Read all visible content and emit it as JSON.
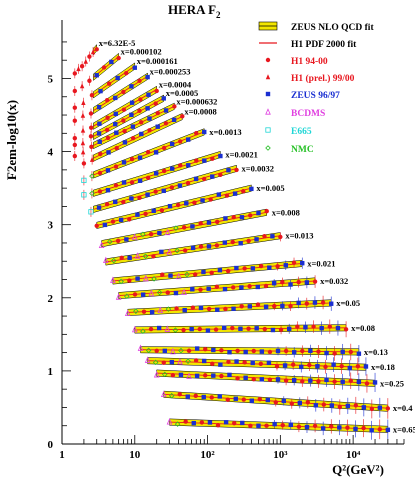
{
  "page": {
    "title": "HERA F",
    "title_sub": "2"
  },
  "chart_data": {
    "type": "scatter",
    "title": "HERA F2",
    "xlabel": "Q²(GeV²)",
    "ylabel": "F2em-log10(x)",
    "x_scale": "log",
    "xlim": [
      1,
      50000
    ],
    "ylim": [
      0,
      5.8
    ],
    "x_ticks": [
      {
        "value": 1,
        "label": "1"
      },
      {
        "value": 10,
        "label": "10"
      },
      {
        "value": 100,
        "label": "10²"
      },
      {
        "value": 1000,
        "label": "10³"
      },
      {
        "value": 10000,
        "label": "10⁴"
      }
    ],
    "y_ticks": [
      0,
      1,
      2,
      3,
      4,
      5
    ],
    "grid": false,
    "legend_position": "top-right",
    "colors": {
      "h1_9400": "#e8171f",
      "h1_prel": "#e8171f",
      "zeus": "#1a2fd1",
      "bcdms": "#e040e0",
      "e665": "#1fd6d6",
      "nmc": "#27c127",
      "fit_band": "#f2e600",
      "h1_fit": "#e8171f",
      "axis": "#000000"
    },
    "legend": [
      {
        "key": "zeus_fit",
        "label": "ZEUS NLO QCD fit"
      },
      {
        "key": "h1_fit",
        "label": "H1 PDF 2000 fit"
      },
      {
        "key": "h1_9400",
        "label": "H1 94-00"
      },
      {
        "key": "h1_prel",
        "label": "H1 (prel.) 99/00"
      },
      {
        "key": "zeus",
        "label": "ZEUS 96/97"
      },
      {
        "key": "bcdms",
        "label": "BCDMS"
      },
      {
        "key": "e665",
        "label": "E665"
      },
      {
        "key": "nmc",
        "label": "NMC"
      }
    ],
    "bins": [
      {
        "label": "x=6.32E-5",
        "q2_range": [
          1.5,
          3.0
        ],
        "f2_range": [
          5.07,
          5.42
        ]
      },
      {
        "label": "x=0.000102",
        "q2_range": [
          1.5,
          6.0
        ],
        "f2_range": [
          4.81,
          5.3
        ]
      },
      {
        "label": "x=0.000161",
        "q2_range": [
          1.5,
          10.0
        ],
        "f2_range": [
          4.6,
          5.17
        ]
      },
      {
        "label": "x=0.000253",
        "q2_range": [
          1.5,
          15.0
        ],
        "f2_range": [
          4.4,
          5.03
        ]
      },
      {
        "label": "x=0.0004",
        "q2_range": [
          1.5,
          20.0
        ],
        "f2_range": [
          4.2,
          4.85
        ]
      },
      {
        "label": "x=0.0005",
        "q2_range": [
          1.5,
          25.0
        ],
        "f2_range": [
          4.07,
          4.73
        ]
      },
      {
        "label": "x=0.000632",
        "q2_range": [
          1.5,
          35.0
        ],
        "f2_range": [
          3.96,
          4.62
        ]
      },
      {
        "label": "x=0.0008",
        "q2_range": [
          2.0,
          45.0
        ],
        "f2_range": [
          3.85,
          4.48
        ]
      },
      {
        "label": "x=0.0013",
        "q2_range": [
          2.0,
          90.0
        ],
        "f2_range": [
          3.63,
          4.27
        ]
      },
      {
        "label": "x=0.0021",
        "q2_range": [
          2.0,
          150.0
        ],
        "f2_range": [
          3.39,
          3.96
        ]
      },
      {
        "label": "x=0.0032",
        "q2_range": [
          2.5,
          250.0
        ],
        "f2_range": [
          3.2,
          3.77
        ]
      },
      {
        "label": "x=0.005",
        "q2_range": [
          3.0,
          400.0
        ],
        "f2_range": [
          2.99,
          3.5
        ]
      },
      {
        "label": "x=0.008",
        "q2_range": [
          3.5,
          650.0
        ],
        "f2_range": [
          2.74,
          3.17
        ]
      },
      {
        "label": "x=0.013",
        "q2_range": [
          4.0,
          1000.0
        ],
        "f2_range": [
          2.49,
          2.85
        ]
      },
      {
        "label": "x=0.021",
        "q2_range": [
          5.0,
          2000.0
        ],
        "f2_range": [
          2.23,
          2.47
        ]
      },
      {
        "label": "x=0.032",
        "q2_range": [
          6.0,
          3000.0
        ],
        "f2_range": [
          2.03,
          2.23
        ]
      },
      {
        "label": "x=0.05",
        "q2_range": [
          8.0,
          5000.0
        ],
        "f2_range": [
          1.8,
          1.93
        ]
      },
      {
        "label": "x=0.08",
        "q2_range": [
          10.0,
          8000.0
        ],
        "f2_range": [
          1.56,
          1.59
        ]
      },
      {
        "label": "x=0.13",
        "q2_range": [
          12.0,
          12000.0
        ],
        "f2_range": [
          1.29,
          1.26
        ]
      },
      {
        "label": "x=0.18",
        "q2_range": [
          15.0,
          15000.0
        ],
        "f2_range": [
          1.14,
          1.05
        ]
      },
      {
        "label": "x=0.25",
        "q2_range": [
          20.0,
          20000.0
        ],
        "f2_range": [
          0.97,
          0.83
        ]
      },
      {
        "label": "x=0.4",
        "q2_range": [
          25.0,
          30000.0
        ],
        "f2_range": [
          0.68,
          0.49
        ]
      },
      {
        "label": "x=0.65",
        "q2_range": [
          30.0,
          30000.0
        ],
        "f2_range": [
          0.3,
          0.2
        ]
      }
    ]
  }
}
